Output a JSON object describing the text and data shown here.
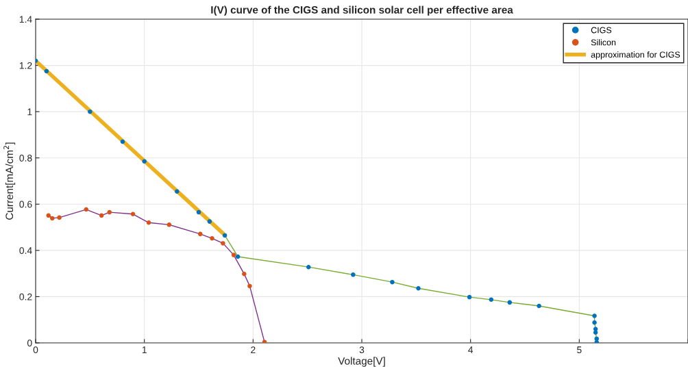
{
  "chart_data": {
    "type": "scatter",
    "title": "I(V) curve of the CIGS and silicon solar cell per effective area",
    "xlabel": "Voltage[V]",
    "ylabel": "Current[mA/cm$^{2}$]",
    "xlim": [
      0,
      6
    ],
    "ylim": [
      0,
      1.4
    ],
    "xticks": [
      0,
      1,
      2,
      3,
      4,
      5,
      {
        "value": 6,
        "label": null
      }
    ],
    "yticks": [
      0,
      0.2,
      0.4,
      0.6,
      0.8,
      1,
      1.2,
      1.4
    ],
    "grid": true,
    "legend": "top right",
    "series": [
      {
        "type": "line",
        "color": "#77ac30",
        "x": [
          1.6,
          1.74,
          1.86,
          2.51,
          2.92,
          3.28,
          3.52,
          3.99,
          4.19,
          4.36,
          4.63,
          5.14,
          5.14,
          5.15,
          5.15,
          5.16,
          5.16
        ],
        "values": [
          0.525,
          0.465,
          0.373,
          0.328,
          0.295,
          0.263,
          0.236,
          0.198,
          0.187,
          0.175,
          0.16,
          0.117,
          0.088,
          0.06,
          0.045,
          0.018,
          0.003
        ]
      },
      {
        "type": "line",
        "color": "#7e2f8e",
        "x": [
          0.118,
          0.153,
          0.218,
          0.465,
          0.606,
          0.679,
          0.895,
          1.04,
          1.228,
          1.514,
          1.623,
          1.723,
          1.822,
          1.918,
          1.969,
          2.105
        ],
        "values": [
          0.551,
          0.539,
          0.542,
          0.577,
          0.551,
          0.565,
          0.557,
          0.52,
          0.511,
          0.471,
          0.452,
          0.431,
          0.38,
          0.298,
          0.246,
          0.004
        ]
      },
      {
        "name": "CIGS",
        "color": "#0072bd",
        "x": [
          0,
          0.1,
          0.5,
          0.8,
          1.0,
          1.3,
          1.5,
          1.6,
          1.74,
          1.86,
          2.51,
          2.92,
          3.28,
          3.52,
          3.99,
          4.19,
          4.36,
          4.63,
          5.14,
          5.14,
          5.15,
          5.15,
          5.16,
          5.16
        ],
        "values": [
          1.22,
          1.175,
          1.0,
          0.87,
          0.785,
          0.655,
          0.565,
          0.525,
          0.465,
          0.373,
          0.328,
          0.295,
          0.263,
          0.236,
          0.198,
          0.187,
          0.175,
          0.16,
          0.117,
          0.088,
          0.06,
          0.045,
          0.018,
          0.003
        ]
      },
      {
        "name": "Silicon",
        "color": "#d95319",
        "x": [
          0.118,
          0.153,
          0.218,
          0.465,
          0.606,
          0.679,
          0.895,
          1.04,
          1.228,
          1.514,
          1.623,
          1.723,
          1.822,
          1.918,
          1.969,
          2.105
        ],
        "values": [
          0.551,
          0.539,
          0.542,
          0.577,
          0.551,
          0.565,
          0.557,
          0.52,
          0.511,
          0.471,
          0.452,
          0.431,
          0.38,
          0.298,
          0.246,
          0.004
        ]
      },
      {
        "name": "approximation for CIGS",
        "type": "line",
        "color": "#edb120",
        "x": [
          0,
          1.72
        ],
        "values": [
          1.22,
          0.475
        ]
      }
    ]
  }
}
